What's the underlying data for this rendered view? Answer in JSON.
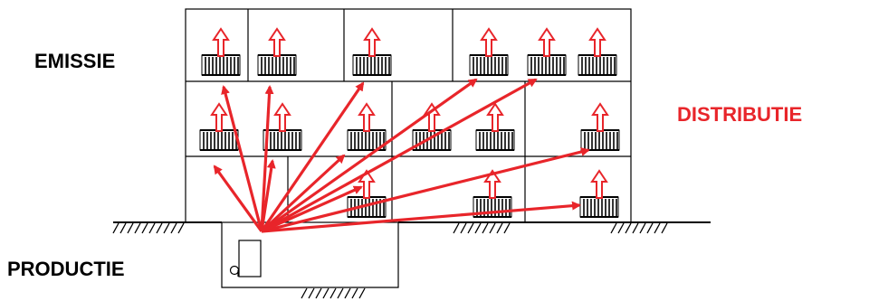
{
  "labels": {
    "emissie": "EMISSIE",
    "distributie": "DISTRIBUTIE",
    "productie": "PRODUCTIE"
  },
  "colors": {
    "arrow": "#e8252a",
    "line": "#000000",
    "distributie_text": "#e8252a"
  },
  "icons": {
    "radiator": "radiator-icon",
    "heat": "heat-up-arrow-icon",
    "boiler": "boiler-icon",
    "ground": "ground-hatch-icon"
  }
}
